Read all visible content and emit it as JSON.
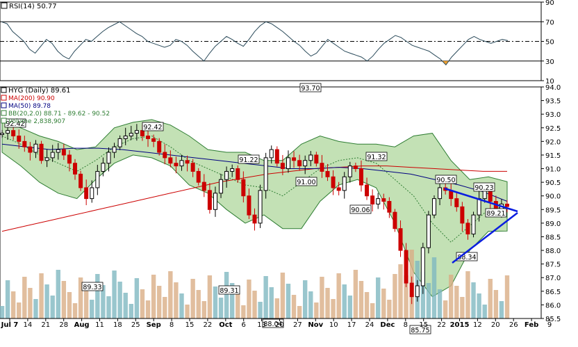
{
  "chart_data": [
    {
      "type": "line",
      "indicator": "RSI",
      "label": "RSI(14) 50.77",
      "value": 50.77,
      "ylim": [
        10,
        90
      ],
      "yticks": [
        10,
        30,
        50,
        70,
        90
      ],
      "levels": {
        "upper": 70,
        "mid": 50,
        "lower": 30
      },
      "oversold_fill_color": "#f0a030",
      "series": [
        {
          "values": [
            70,
            68,
            60,
            55,
            50,
            42,
            38,
            45,
            52,
            48,
            40,
            35,
            32,
            40,
            46,
            52,
            50,
            55,
            60,
            64,
            67,
            70,
            66,
            62,
            58,
            55,
            50,
            48,
            46,
            44,
            46,
            52,
            50,
            46,
            40,
            35,
            30,
            38,
            45,
            50,
            55,
            52,
            48,
            45,
            52,
            60,
            66,
            70,
            68,
            64,
            60,
            55,
            50,
            46,
            40,
            35,
            38,
            45,
            52,
            48,
            44,
            40,
            38,
            36,
            34,
            30,
            35,
            42,
            48,
            52,
            56,
            54,
            50,
            46,
            44,
            42,
            40,
            36,
            32,
            26,
            34,
            40,
            46,
            52,
            55,
            52,
            50,
            48,
            50,
            52,
            50.77
          ]
        }
      ]
    },
    {
      "type": "candlestick",
      "title": "HYG (Daily) 89.61",
      "last": 89.61,
      "ylim": [
        85.5,
        94.0
      ],
      "yticks": [
        85.5,
        86.0,
        86.5,
        87.0,
        87.5,
        88.0,
        88.5,
        89.0,
        89.5,
        90.0,
        90.5,
        91.0,
        91.5,
        92.0,
        92.5,
        93.0,
        93.5,
        94.0
      ],
      "x_tick_labels": [
        "Jul 7",
        "14",
        "21",
        "28",
        "Aug",
        "11",
        "18",
        "25",
        "Sep",
        "8",
        "15",
        "22",
        "Oct",
        "6",
        "13",
        "20",
        "27",
        "Nov",
        "10",
        "17",
        "24",
        "Dec",
        "8",
        "15",
        "22",
        "2015",
        "12",
        "20",
        "26",
        "Feb",
        "9"
      ],
      "legend": [
        {
          "label": "HYG (Daily) 89.61",
          "color": "#000000"
        },
        {
          "label": "MA(200) 90.90",
          "color": "#cc0000"
        },
        {
          "label": "MA(50) 89.78",
          "color": "#000080"
        },
        {
          "label": "BB(20,2.0) 88.71 - 89.62 - 90.52",
          "color": "#2e7d32"
        },
        {
          "label": "Volume 2,838,907",
          "color": "#2e7d32"
        }
      ],
      "close": [
        92.3,
        92.4,
        92.2,
        92.0,
        91.8,
        91.6,
        91.9,
        91.3,
        91.4,
        91.6,
        91.7,
        91.5,
        91.2,
        90.8,
        90.3,
        89.9,
        90.3,
        90.9,
        91.2,
        91.6,
        91.8,
        92.1,
        92.2,
        92.3,
        92.4,
        92.2,
        92.1,
        92.0,
        91.6,
        91.4,
        91.2,
        91.1,
        91.3,
        91.2,
        90.9,
        90.5,
        90.2,
        89.5,
        90.1,
        90.6,
        90.9,
        91.0,
        90.6,
        90.0,
        89.3,
        89.0,
        90.2,
        91.4,
        91.7,
        91.2,
        91.0,
        91.4,
        91.3,
        91.1,
        91.3,
        91.5,
        91.2,
        90.9,
        90.7,
        90.3,
        90.2,
        90.7,
        91.1,
        91.0,
        90.4,
        90.0,
        89.7,
        89.9,
        89.8,
        89.4,
        88.8,
        88.0,
        86.8,
        86.3,
        86.7,
        88.1,
        89.3,
        89.9,
        90.3,
        90.2,
        89.9,
        89.6,
        89.0,
        88.6,
        89.3,
        89.9,
        90.2,
        89.8,
        89.5,
        89.7,
        89.61
      ],
      "ma200": [
        88.7,
        88.9,
        89.1,
        89.3,
        89.5,
        89.7,
        89.9,
        90.1,
        90.3,
        90.5,
        90.65,
        90.8,
        90.9,
        91.0,
        91.05,
        91.1,
        91.1,
        91.05,
        91.0,
        90.95,
        90.9,
        90.9
      ],
      "ma50": [
        91.9,
        91.8,
        91.7,
        91.75,
        91.75,
        91.7,
        91.6,
        91.5,
        91.4,
        91.3,
        91.2,
        91.1,
        91.0,
        91.0,
        91.05,
        91.0,
        90.9,
        90.8,
        90.6,
        90.4,
        90.15,
        89.8
      ],
      "bb_mid": [
        92.2,
        91.9,
        91.5,
        91.2,
        90.9,
        91.3,
        91.8,
        92.1,
        92.2,
        91.8,
        91.3,
        91.0,
        90.7,
        90.4,
        90.3,
        90.0,
        90.5,
        91.0,
        91.3,
        91.4,
        91.2,
        90.6,
        90.0,
        89.0,
        88.3,
        88.9,
        89.5,
        89.62
      ],
      "bb_upper": [
        92.7,
        92.5,
        92.2,
        92.0,
        91.7,
        91.8,
        92.5,
        92.7,
        92.8,
        92.6,
        92.2,
        91.7,
        91.6,
        91.6,
        91.3,
        91.3,
        91.9,
        92.2,
        92.0,
        91.9,
        91.9,
        91.8,
        92.2,
        92.3,
        91.3,
        90.6,
        90.7,
        90.52
      ],
      "bb_lower": [
        91.6,
        91.1,
        90.5,
        90.1,
        89.9,
        90.6,
        91.2,
        91.5,
        91.4,
        91.1,
        90.4,
        90.1,
        89.5,
        89.0,
        89.3,
        88.8,
        88.8,
        89.8,
        90.4,
        90.6,
        90.3,
        89.0,
        87.2,
        86.3,
        86.7,
        88.0,
        88.7,
        88.71
      ],
      "annotations": [
        "92.42",
        "92.42",
        "89.33",
        "89.31",
        "91.22",
        "88.04",
        "93.70",
        "91.00",
        "90.06",
        "91.32",
        "85.75",
        "90.50",
        "90.23",
        "88.34",
        "89.21"
      ],
      "pattern": "symmetrical triangle",
      "triangle_color": "#0a1ee0"
    }
  ]
}
